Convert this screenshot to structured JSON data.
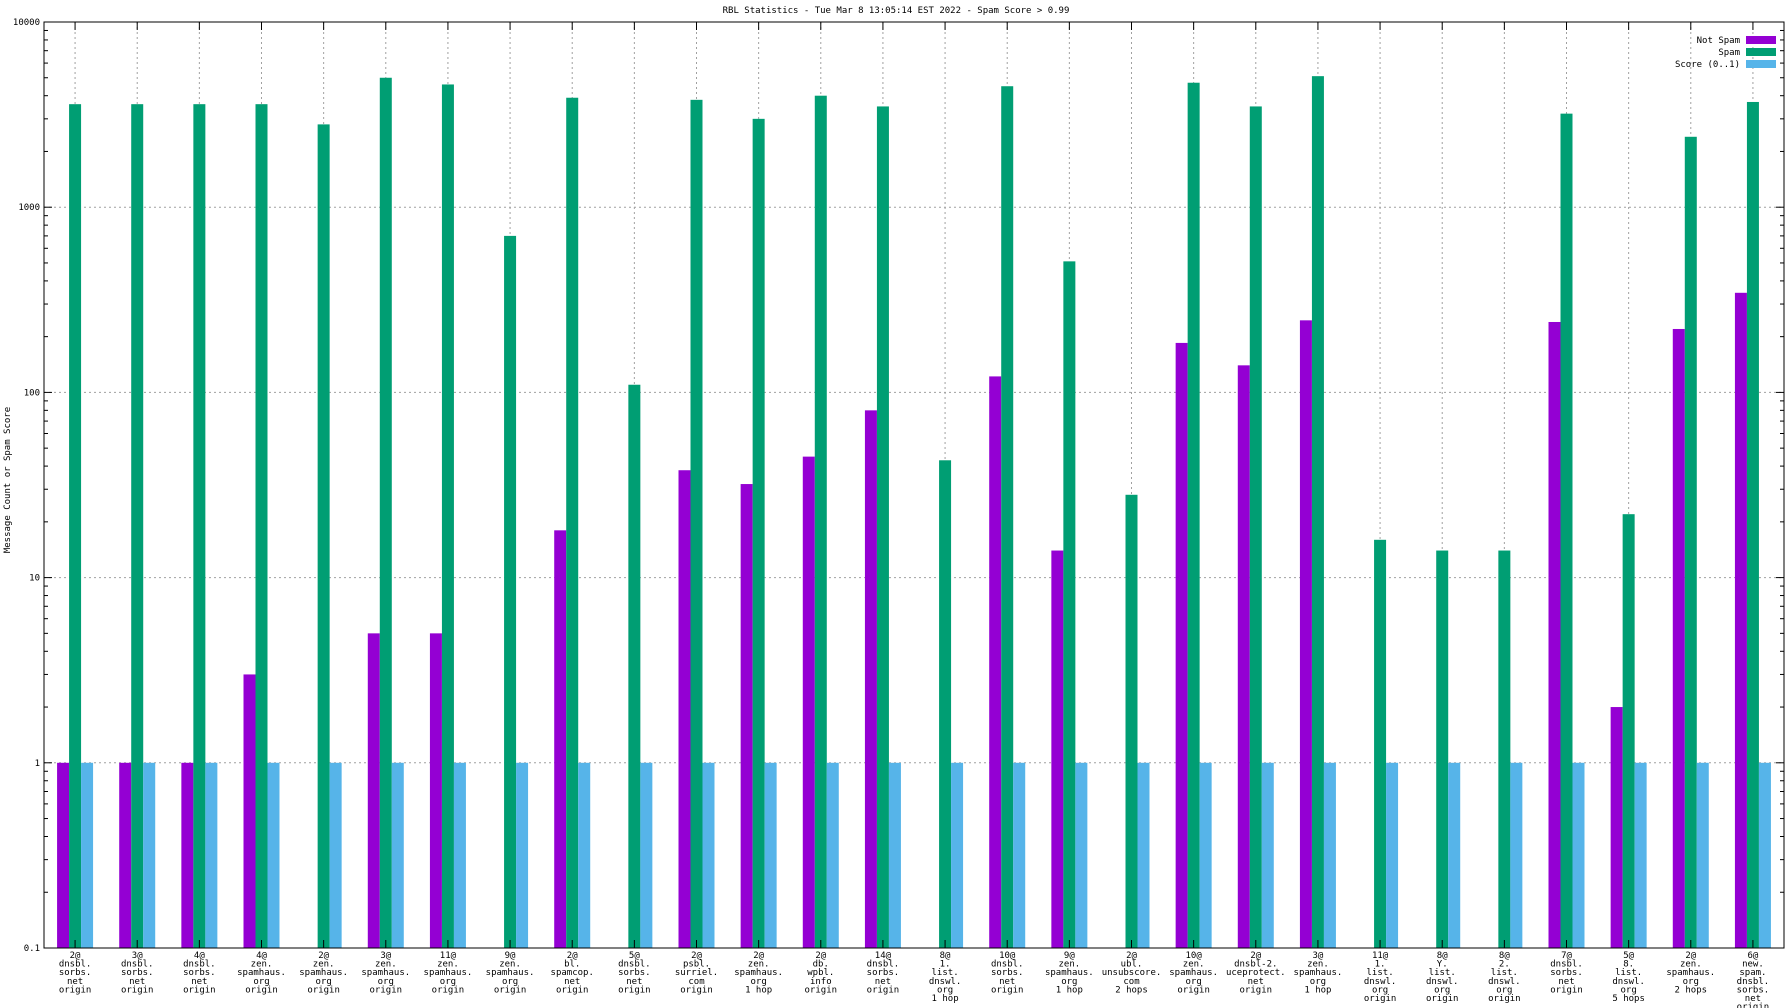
{
  "chart_data": {
    "type": "bar",
    "title": "RBL Statistics - Tue Mar  8 13:05:14 EST 2022 - Spam Score > 0.99",
    "xlabel": "",
    "ylabel": "Message Count or Spam Score",
    "yscale": "log",
    "ylim": [
      0.1,
      10000
    ],
    "yticks": [
      "10000",
      "1000",
      "100",
      "10",
      "1",
      "0.1"
    ],
    "legend_position": "top-right",
    "categories": [
      [
        "2@",
        "dnsbl.",
        "sorbs.",
        "net",
        "origin"
      ],
      [
        "3@",
        "dnsbl.",
        "sorbs.",
        "net",
        "origin"
      ],
      [
        "4@",
        "dnsbl.",
        "sorbs.",
        "net",
        "origin"
      ],
      [
        "4@",
        "zen.",
        "spamhaus.",
        "org",
        "origin"
      ],
      [
        "2@",
        "zen.",
        "spamhaus.",
        "org",
        "origin"
      ],
      [
        "3@",
        "zen.",
        "spamhaus.",
        "org",
        "origin"
      ],
      [
        "11@",
        "zen.",
        "spamhaus.",
        "org",
        "origin"
      ],
      [
        "9@",
        "zen.",
        "spamhaus.",
        "org",
        "origin"
      ],
      [
        "2@",
        "bl.",
        "spamcop.",
        "net",
        "origin"
      ],
      [
        "5@",
        "dnsbl.",
        "sorbs.",
        "net",
        "origin"
      ],
      [
        "2@",
        "psbl.",
        "surriel.",
        "com",
        "origin"
      ],
      [
        "2@",
        "zen.",
        "spamhaus.",
        "org",
        "1 hop"
      ],
      [
        "2@",
        "db.",
        "wpbl.",
        "info",
        "origin"
      ],
      [
        "14@",
        "dnsbl.",
        "sorbs.",
        "net",
        "origin"
      ],
      [
        "8@",
        "1.",
        "list.",
        "dnswl.",
        "org",
        "1 hop"
      ],
      [
        "10@",
        "dnsbl.",
        "sorbs.",
        "net",
        "origin"
      ],
      [
        "9@",
        "zen.",
        "spamhaus.",
        "org",
        "1 hop"
      ],
      [
        "2@",
        "ubl.",
        "unsubscore.",
        "com",
        "2 hops"
      ],
      [
        "10@",
        "zen.",
        "spamhaus.",
        "org",
        "origin"
      ],
      [
        "2@",
        "dnsbl-2.",
        "uceprotect.",
        "net",
        "origin"
      ],
      [
        "3@",
        "zen.",
        "spamhaus.",
        "org",
        "1 hop"
      ],
      [
        "11@",
        "1.",
        "list.",
        "dnswl.",
        "org",
        "origin"
      ],
      [
        "8@",
        "Y.",
        "list.",
        "dnswl.",
        "org",
        "origin"
      ],
      [
        "8@",
        "2.",
        "list.",
        "dnswl.",
        "org",
        "origin"
      ],
      [
        "7@",
        "dnsbl.",
        "sorbs.",
        "net",
        "origin"
      ],
      [
        "5@",
        "8.",
        "list.",
        "dnswl.",
        "org",
        "5 hops"
      ],
      [
        "2@",
        "zen.",
        "spamhaus.",
        "org",
        "2 hops"
      ],
      [
        "6@",
        "new.",
        "spam.",
        "dnsbl.",
        "sorbs.",
        "net",
        "origin"
      ]
    ],
    "series": [
      {
        "name": "Not Spam",
        "color": "#9400d3",
        "values": [
          1,
          1,
          1,
          3,
          null,
          5,
          5,
          null,
          18,
          null,
          38,
          32,
          45,
          80,
          null,
          122,
          14,
          null,
          185,
          140,
          245,
          null,
          null,
          null,
          240,
          2,
          220,
          345
        ]
      },
      {
        "name": "Spam",
        "color": "#009e73",
        "values": [
          3600,
          3600,
          3600,
          3600,
          2800,
          5000,
          4600,
          700,
          3900,
          110,
          3800,
          3000,
          4000,
          3500,
          43,
          4500,
          510,
          28,
          4700,
          3500,
          5100,
          16,
          14,
          14,
          3200,
          22,
          2400,
          3700
        ]
      },
      {
        "name": "Score (0..1)",
        "color": "#56b4e9",
        "values": [
          1,
          1,
          1,
          1,
          1,
          1,
          1,
          1,
          1,
          1,
          1,
          1,
          1,
          1,
          1,
          1,
          1,
          1,
          1,
          1,
          1,
          1,
          1,
          1,
          1,
          1,
          1,
          1
        ]
      }
    ]
  }
}
